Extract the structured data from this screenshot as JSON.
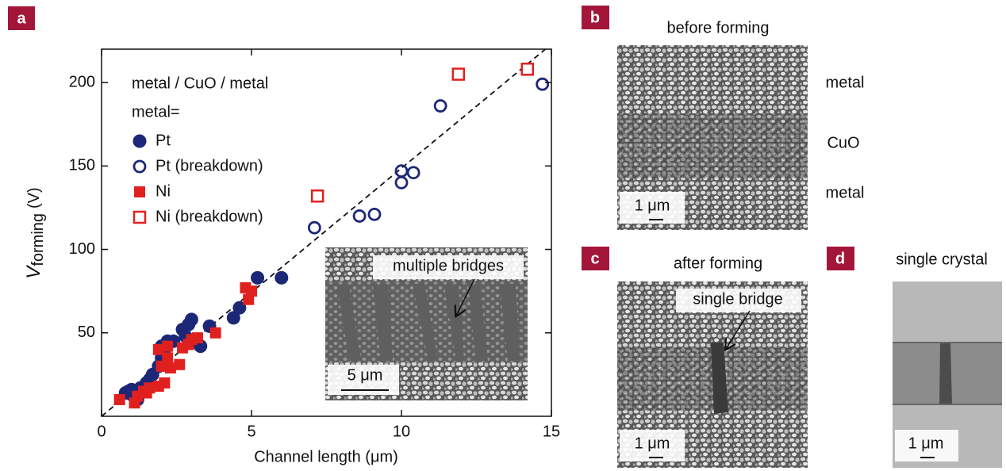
{
  "chart_data": {
    "type": "scatter",
    "x_label": "Channel length (μm)",
    "y_label": {
      "symbol": "V",
      "subscript": "forming",
      "unit": "(V)"
    },
    "legend_title": [
      "metal / CuO / metal",
      "metal="
    ],
    "xlim": [
      0,
      15
    ],
    "ylim": [
      0,
      220
    ],
    "xticks": [
      0,
      5,
      10,
      15
    ],
    "yticks": [
      50,
      100,
      150,
      200
    ],
    "series": [
      {
        "name": "Pt",
        "color": "#1c2777",
        "marker": "circle",
        "filled": true,
        "x": [
          0.8,
          0.9,
          1.0,
          1.1,
          1.2,
          1.3,
          1.5,
          1.7,
          1.9,
          2.0,
          2.1,
          2.2,
          2.4,
          2.7,
          2.9,
          3.0,
          3.3,
          3.6,
          4.4,
          4.6,
          5.2,
          6.0,
          2.1,
          1.6,
          2.8,
          2.0,
          1.2,
          1.0
        ],
        "values": [
          14,
          15,
          16,
          12,
          15,
          17,
          20,
          25,
          30,
          35,
          40,
          45,
          45,
          52,
          55,
          58,
          42,
          54,
          59,
          65,
          83,
          83,
          33,
          22,
          48,
          42,
          10,
          13
        ]
      },
      {
        "name": "Pt (breakdown)",
        "color": "#1c2777",
        "marker": "circle",
        "filled": false,
        "x": [
          7.1,
          8.6,
          9.1,
          10.0,
          10.0,
          10.4,
          11.3,
          14.7
        ],
        "values": [
          113,
          120,
          121,
          140,
          147,
          146,
          186,
          199
        ]
      },
      {
        "name": "Ni",
        "color": "#e0201f",
        "marker": "square",
        "filled": true,
        "x": [
          0.6,
          1.1,
          1.2,
          1.4,
          1.6,
          1.9,
          2.1,
          1.9,
          2.2,
          2.3,
          2.6,
          2.7,
          2.9,
          3.0,
          3.2,
          3.8,
          4.9,
          5.0,
          4.8,
          2.2,
          1.5,
          2.0
        ],
        "values": [
          10,
          8,
          12,
          15,
          17,
          18,
          20,
          40,
          42,
          29,
          31,
          41,
          43,
          46,
          47,
          50,
          70,
          75,
          77,
          35,
          14,
          30
        ]
      },
      {
        "name": "Ni (breakdown)",
        "color": "#e0201f",
        "marker": "square",
        "filled": false,
        "x": [
          7.2,
          11.9,
          14.2
        ],
        "values": [
          132,
          205,
          208
        ]
      }
    ],
    "reference_line": {
      "x": [
        0,
        14.8
      ],
      "values": [
        0,
        220
      ],
      "style": "dashed",
      "color": "#111111"
    }
  },
  "panels": {
    "a": {
      "label": "a",
      "inset": {
        "annotation": "multiple bridges",
        "scale_bar": "5 μm"
      }
    },
    "b": {
      "label": "b",
      "title": "before forming",
      "layers": [
        "metal",
        "CuO",
        "metal"
      ],
      "scale_bar": "1 μm"
    },
    "c": {
      "label": "c",
      "title": "after forming",
      "annotation": "single bridge",
      "scale_bar": "1 μm"
    },
    "d": {
      "label": "d",
      "title": "single crystal",
      "scale_bar": "1 μm"
    }
  }
}
